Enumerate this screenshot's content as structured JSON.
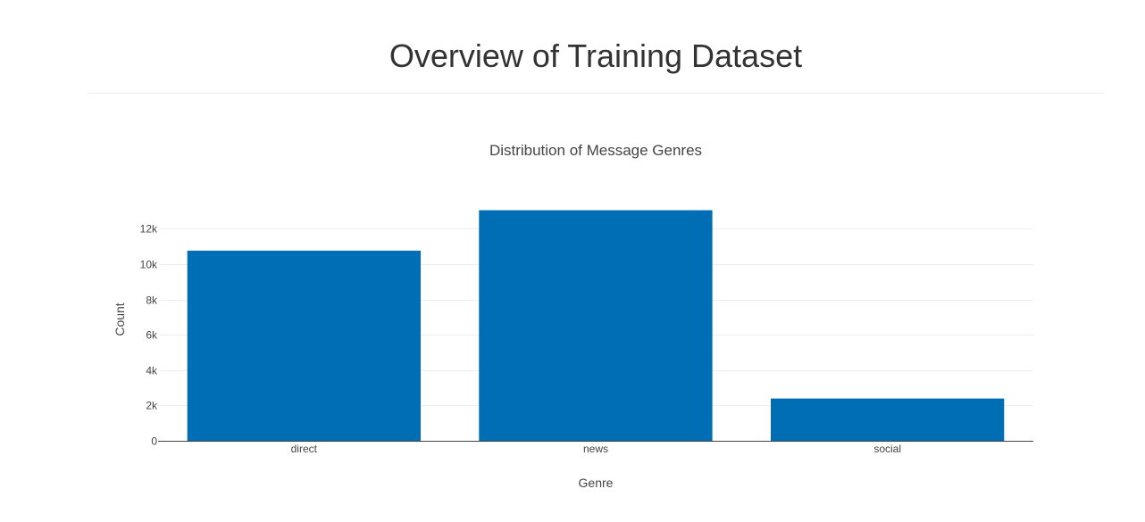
{
  "header": {
    "title": "Overview of Training Dataset"
  },
  "colors": {
    "bar": "#006eb5",
    "grid": "#eeeeee",
    "axis_line": "#444444",
    "text": "#444444"
  },
  "chart_data": {
    "type": "bar",
    "title": "Distribution of Message Genres",
    "xlabel": "Genre",
    "ylabel": "Count",
    "categories": [
      "direct",
      "news",
      "social"
    ],
    "values": [
      10766,
      13054,
      2396
    ],
    "ylim": [
      0,
      13741
    ],
    "yticks": [
      0,
      2000,
      4000,
      6000,
      8000,
      10000,
      12000
    ],
    "ytick_labels": [
      "0",
      "2k",
      "4k",
      "6k",
      "8k",
      "10k",
      "12k"
    ],
    "grid": true,
    "legend": "none"
  }
}
